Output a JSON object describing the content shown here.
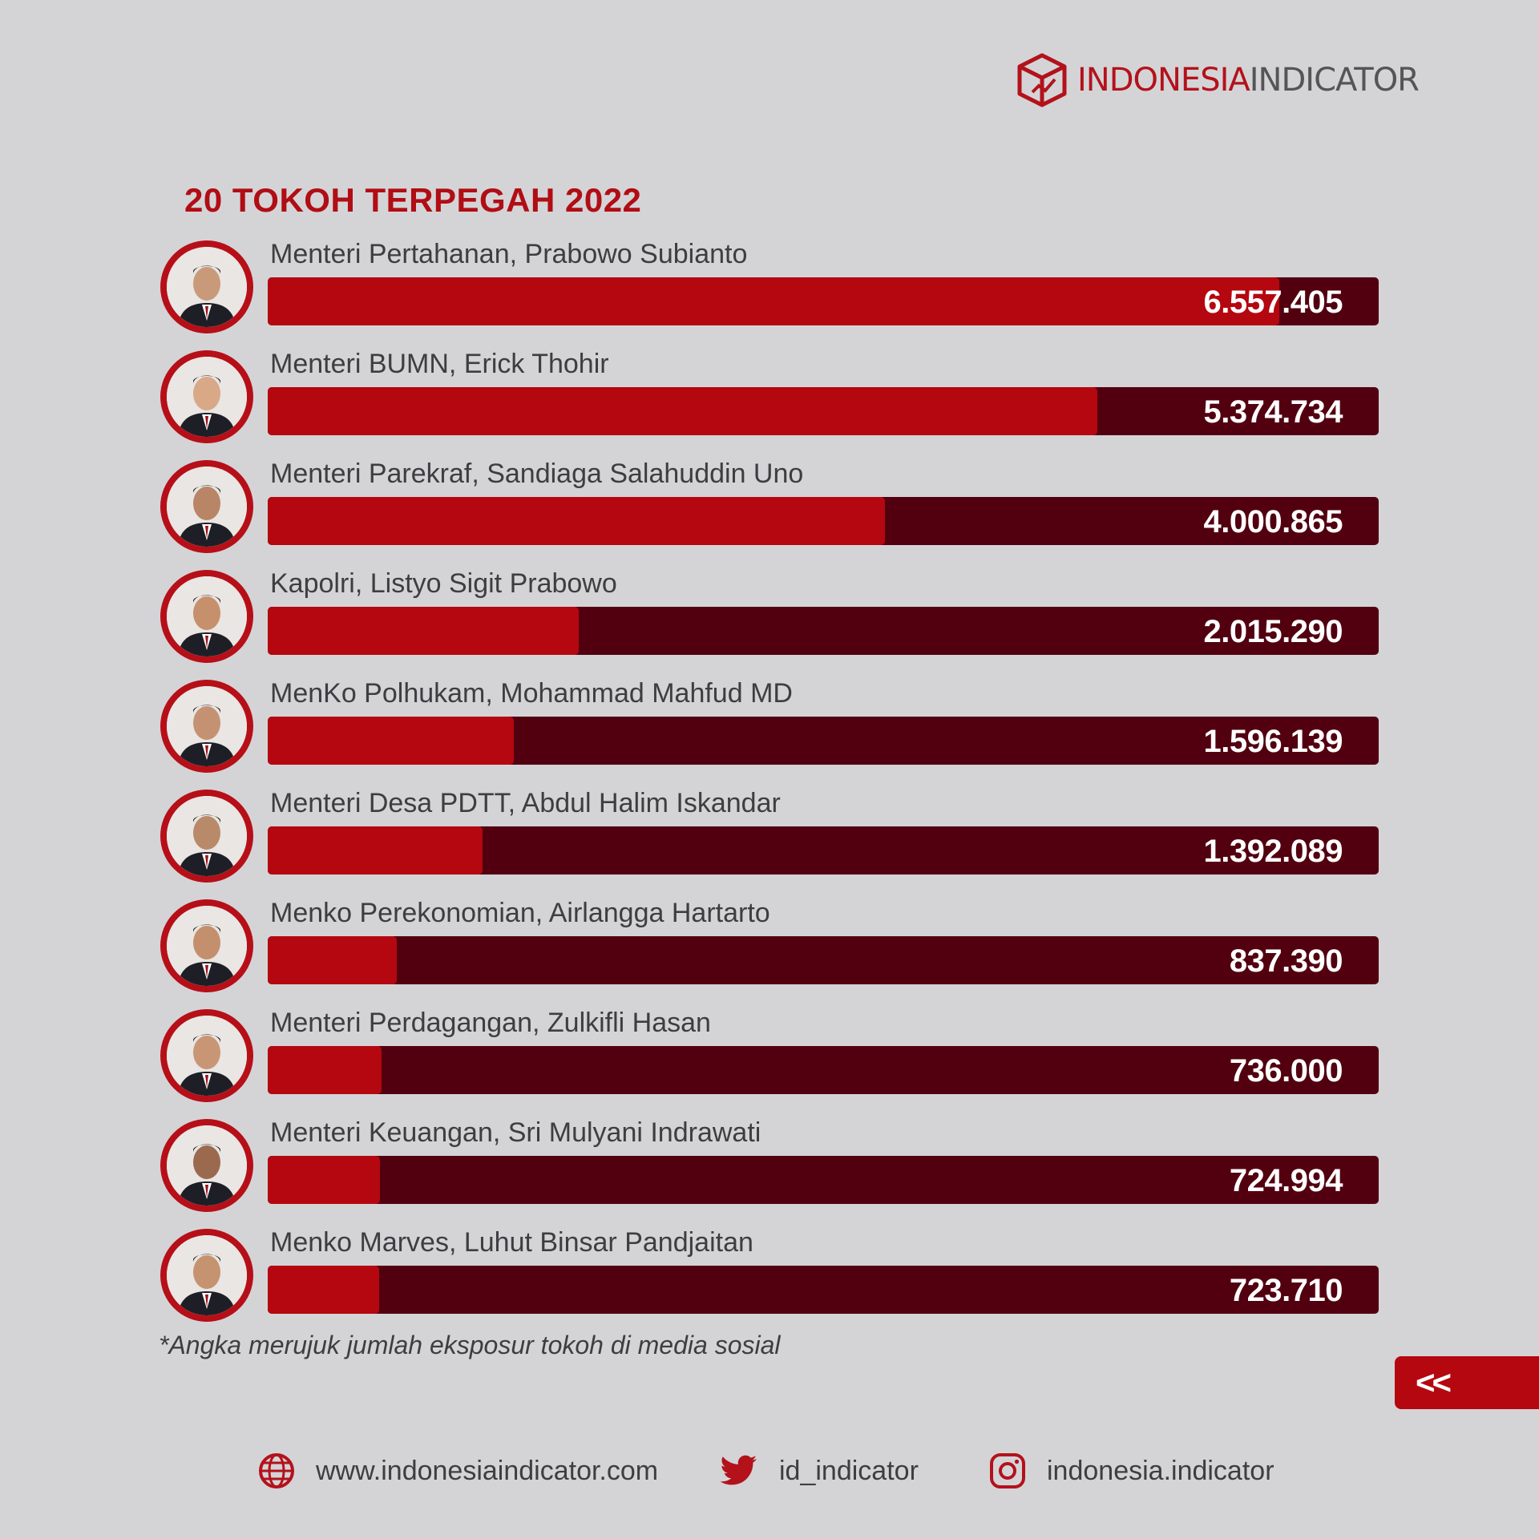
{
  "brand": {
    "part1": "INDONESIA",
    "part2": "INDICATOR"
  },
  "colors": {
    "accent": "#b5070f",
    "track": "#520010",
    "background": "#d4d4d7"
  },
  "chart_data": {
    "type": "bar",
    "title": "20 TOKOH TERPEGAH 2022",
    "categories": [
      "Menteri Pertahanan, Prabowo Subianto",
      "Menteri BUMN, Erick Thohir",
      "Menteri Parekraf, Sandiaga Salahuddin Uno",
      "Kapolri, Listyo Sigit Prabowo",
      "MenKo Polhukam, Mohammad Mahfud MD",
      "Menteri Desa PDTT, Abdul Halim Iskandar",
      "Menko Perekonomian, Airlangga Hartarto",
      "Menteri Perdagangan, Zulkifli Hasan",
      "Menteri Keuangan, Sri Mulyani Indrawati",
      "Menko Marves, Luhut Binsar Pandjaitan"
    ],
    "values": [
      6557405,
      5374734,
      4000865,
      2015290,
      1596139,
      1392089,
      837390,
      736000,
      724994,
      723710
    ],
    "value_labels": [
      "6.557.405",
      "5.374.734",
      "4.000.865",
      "2.015.290",
      "1.596.139",
      "1.392.089",
      "837.390",
      "736.000",
      "724.994",
      "723.710"
    ],
    "xlim": [
      0,
      7200000
    ],
    "orientation": "horizontal"
  },
  "note": "*Angka merujuk jumlah eksposur tokoh di media sosial",
  "nav": {
    "back_label": "<<"
  },
  "footer": {
    "website": "www.indonesiaindicator.com",
    "twitter": "id_indicator",
    "instagram": "indonesia.indicator"
  },
  "icons": {
    "website": "globe-icon",
    "twitter": "twitter-bird-icon",
    "instagram": "instagram-icon",
    "logo": "cube-logo-icon"
  }
}
